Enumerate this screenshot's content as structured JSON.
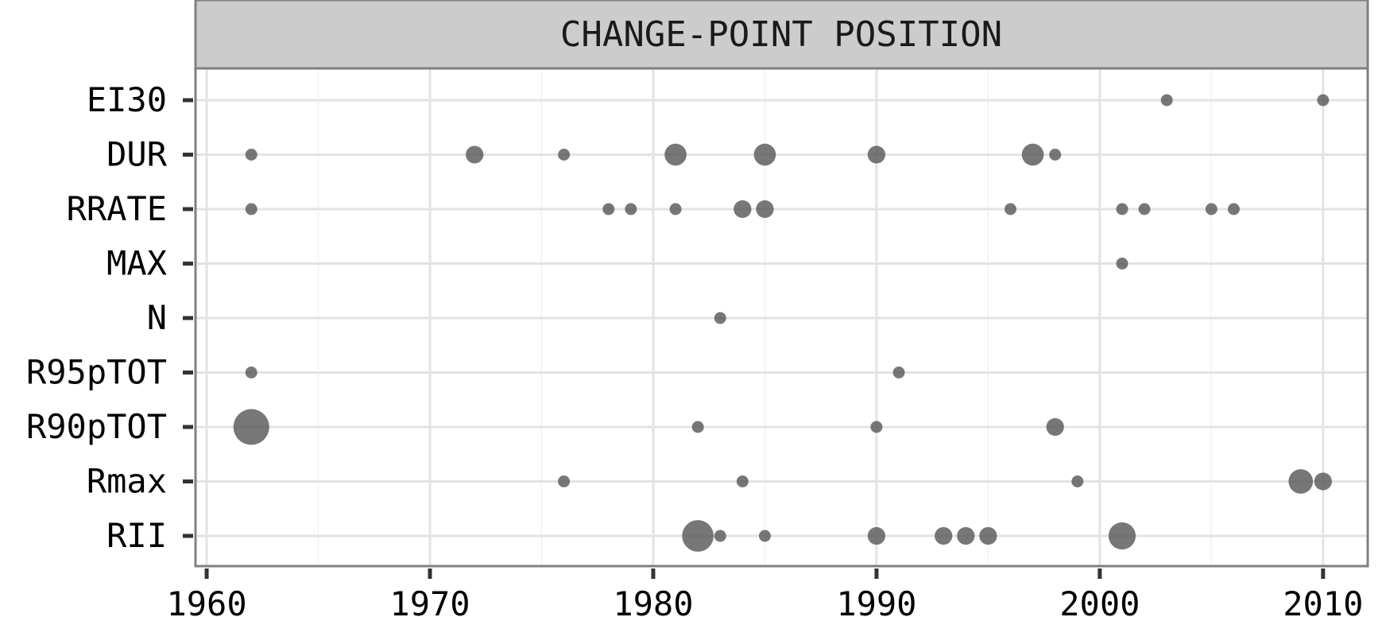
{
  "chart_data": {
    "type": "scatter",
    "title": "",
    "strip_label": "CHANGE-POINT POSITION",
    "xlabel": "",
    "ylabel": "",
    "xlim": [
      1959.5,
      2012
    ],
    "x_ticks": [
      1960,
      1970,
      1980,
      1990,
      2000,
      2010
    ],
    "x_tick_labels": [
      "1960",
      "1970",
      "1980",
      "1990",
      "2000",
      "2010"
    ],
    "categories": [
      "EI30",
      "DUR",
      "RRATE",
      "MAX",
      "N",
      "R95pTOT",
      "R90pTOT",
      "Rmax",
      "RII"
    ],
    "grid": true,
    "legend": "none",
    "point_color": "#595959",
    "point_opacity": 0.82,
    "size_note": "relative bubble size",
    "points": [
      {
        "category": "EI30",
        "x": 2003,
        "size": 1
      },
      {
        "category": "EI30",
        "x": 2010,
        "size": 1
      },
      {
        "category": "DUR",
        "x": 1962,
        "size": 1
      },
      {
        "category": "DUR",
        "x": 1972,
        "size": 2.2
      },
      {
        "category": "DUR",
        "x": 1976,
        "size": 1
      },
      {
        "category": "DUR",
        "x": 1981,
        "size": 3.4
      },
      {
        "category": "DUR",
        "x": 1985,
        "size": 3.4
      },
      {
        "category": "DUR",
        "x": 1990,
        "size": 2.2
      },
      {
        "category": "DUR",
        "x": 1997,
        "size": 3.4
      },
      {
        "category": "DUR",
        "x": 1998,
        "size": 1
      },
      {
        "category": "RRATE",
        "x": 1962,
        "size": 1
      },
      {
        "category": "RRATE",
        "x": 1978,
        "size": 1
      },
      {
        "category": "RRATE",
        "x": 1979,
        "size": 1
      },
      {
        "category": "RRATE",
        "x": 1981,
        "size": 1
      },
      {
        "category": "RRATE",
        "x": 1984,
        "size": 2.2
      },
      {
        "category": "RRATE",
        "x": 1985,
        "size": 2.2
      },
      {
        "category": "RRATE",
        "x": 1996,
        "size": 1
      },
      {
        "category": "RRATE",
        "x": 2001,
        "size": 1
      },
      {
        "category": "RRATE",
        "x": 2002,
        "size": 1
      },
      {
        "category": "RRATE",
        "x": 2005,
        "size": 1
      },
      {
        "category": "RRATE",
        "x": 2006,
        "size": 1
      },
      {
        "category": "MAX",
        "x": 2001,
        "size": 1
      },
      {
        "category": "N",
        "x": 1983,
        "size": 1
      },
      {
        "category": "R95pTOT",
        "x": 1962,
        "size": 1
      },
      {
        "category": "R95pTOT",
        "x": 1991,
        "size": 1
      },
      {
        "category": "R90pTOT",
        "x": 1962,
        "size": 9
      },
      {
        "category": "R90pTOT",
        "x": 1982,
        "size": 1
      },
      {
        "category": "R90pTOT",
        "x": 1990,
        "size": 1
      },
      {
        "category": "R90pTOT",
        "x": 1998,
        "size": 2.2
      },
      {
        "category": "Rmax",
        "x": 1976,
        "size": 1
      },
      {
        "category": "Rmax",
        "x": 1984,
        "size": 1
      },
      {
        "category": "Rmax",
        "x": 1999,
        "size": 1
      },
      {
        "category": "Rmax",
        "x": 2009,
        "size": 4.2
      },
      {
        "category": "Rmax",
        "x": 2010,
        "size": 2.2
      },
      {
        "category": "RII",
        "x": 1982,
        "size": 7
      },
      {
        "category": "RII",
        "x": 1983,
        "size": 1
      },
      {
        "category": "RII",
        "x": 1985,
        "size": 1
      },
      {
        "category": "RII",
        "x": 1990,
        "size": 2.2
      },
      {
        "category": "RII",
        "x": 1993,
        "size": 2.2
      },
      {
        "category": "RII",
        "x": 1994,
        "size": 2.2
      },
      {
        "category": "RII",
        "x": 1995,
        "size": 2.2
      },
      {
        "category": "RII",
        "x": 2001,
        "size": 5.2
      }
    ]
  }
}
